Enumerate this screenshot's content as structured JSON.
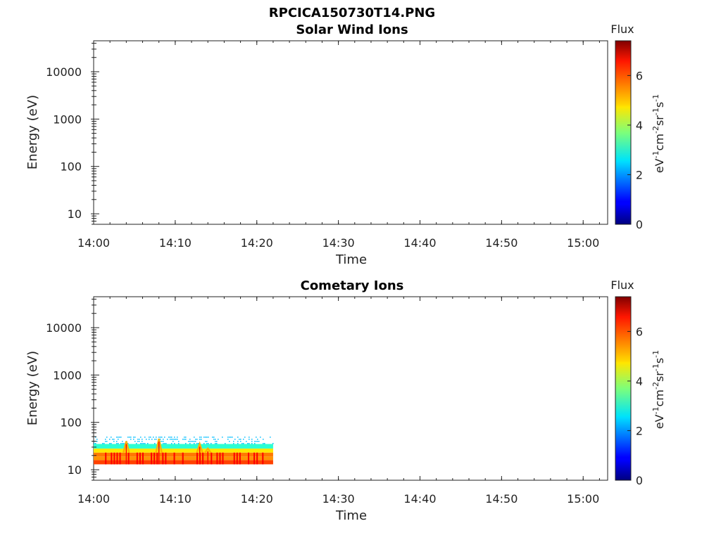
{
  "figure": {
    "title": "RPCICA150730T14.PNG"
  },
  "chart_data": [
    {
      "type": "heatmap",
      "title": "Solar Wind Ions",
      "xlabel": "Time",
      "ylabel": "Energy (eV)",
      "xticks": [
        "14:00",
        "14:10",
        "14:20",
        "14:30",
        "14:40",
        "14:50",
        "15:00"
      ],
      "xlim": [
        "14:00",
        "15:03"
      ],
      "yscale": "log",
      "yticks": [
        10,
        100,
        1000,
        10000
      ],
      "ytick_labels": [
        "10",
        "100",
        "1000",
        "10000"
      ],
      "ylim": [
        6,
        45000
      ],
      "colorbar": {
        "title": "Flux",
        "label": "eV-1cm-2sr-1s-1",
        "range": [
          0,
          7.4
        ],
        "ticks": [
          0,
          2,
          4,
          6
        ],
        "tick_labels": [
          "0",
          "2",
          "4",
          "6"
        ],
        "colormap": "jet"
      },
      "data_extent": null,
      "energy_bands": [],
      "spikes": []
    },
    {
      "type": "heatmap",
      "title": "Cometary Ions",
      "xlabel": "Time",
      "ylabel": "Energy (eV)",
      "xticks": [
        "14:00",
        "14:10",
        "14:20",
        "14:30",
        "14:40",
        "14:50",
        "15:00"
      ],
      "xlim": [
        "14:00",
        "15:03"
      ],
      "yscale": "log",
      "yticks": [
        10,
        100,
        1000,
        10000
      ],
      "ytick_labels": [
        "10",
        "100",
        "1000",
        "10000"
      ],
      "ylim": [
        6,
        45000
      ],
      "colorbar": {
        "title": "Flux",
        "label": "eV-1cm-2sr-1s-1",
        "range": [
          0,
          7.4
        ],
        "ticks": [
          0,
          2,
          4,
          6
        ],
        "tick_labels": [
          "0",
          "2",
          "4",
          "6"
        ],
        "colormap": "jet"
      },
      "data_extent": {
        "t_start": "14:00",
        "t_end": "14:22"
      },
      "energy_bands": [
        {
          "e_low": 13,
          "e_high": 16,
          "flux": 6.0
        },
        {
          "e_low": 16,
          "e_high": 19,
          "flux": 5.4
        },
        {
          "e_low": 19,
          "e_high": 23,
          "flux": 5.6
        },
        {
          "e_low": 23,
          "e_high": 28,
          "flux": 4.8
        },
        {
          "e_low": 28,
          "e_high": 35,
          "flux": 3.1
        },
        {
          "e_low": 35,
          "e_high": 50,
          "flux": 2.3,
          "sparse": true
        }
      ],
      "spikes": [
        {
          "time": "14:04",
          "e_peak": 40
        },
        {
          "time": "14:08",
          "e_peak": 45
        },
        {
          "time": "14:13",
          "e_peak": 35
        },
        {
          "time": "14:14",
          "e_peak": 28
        }
      ],
      "hot_intervals": [
        {
          "t_start": "14:00",
          "t_end": "14:22",
          "flux": 6.5
        }
      ]
    }
  ]
}
